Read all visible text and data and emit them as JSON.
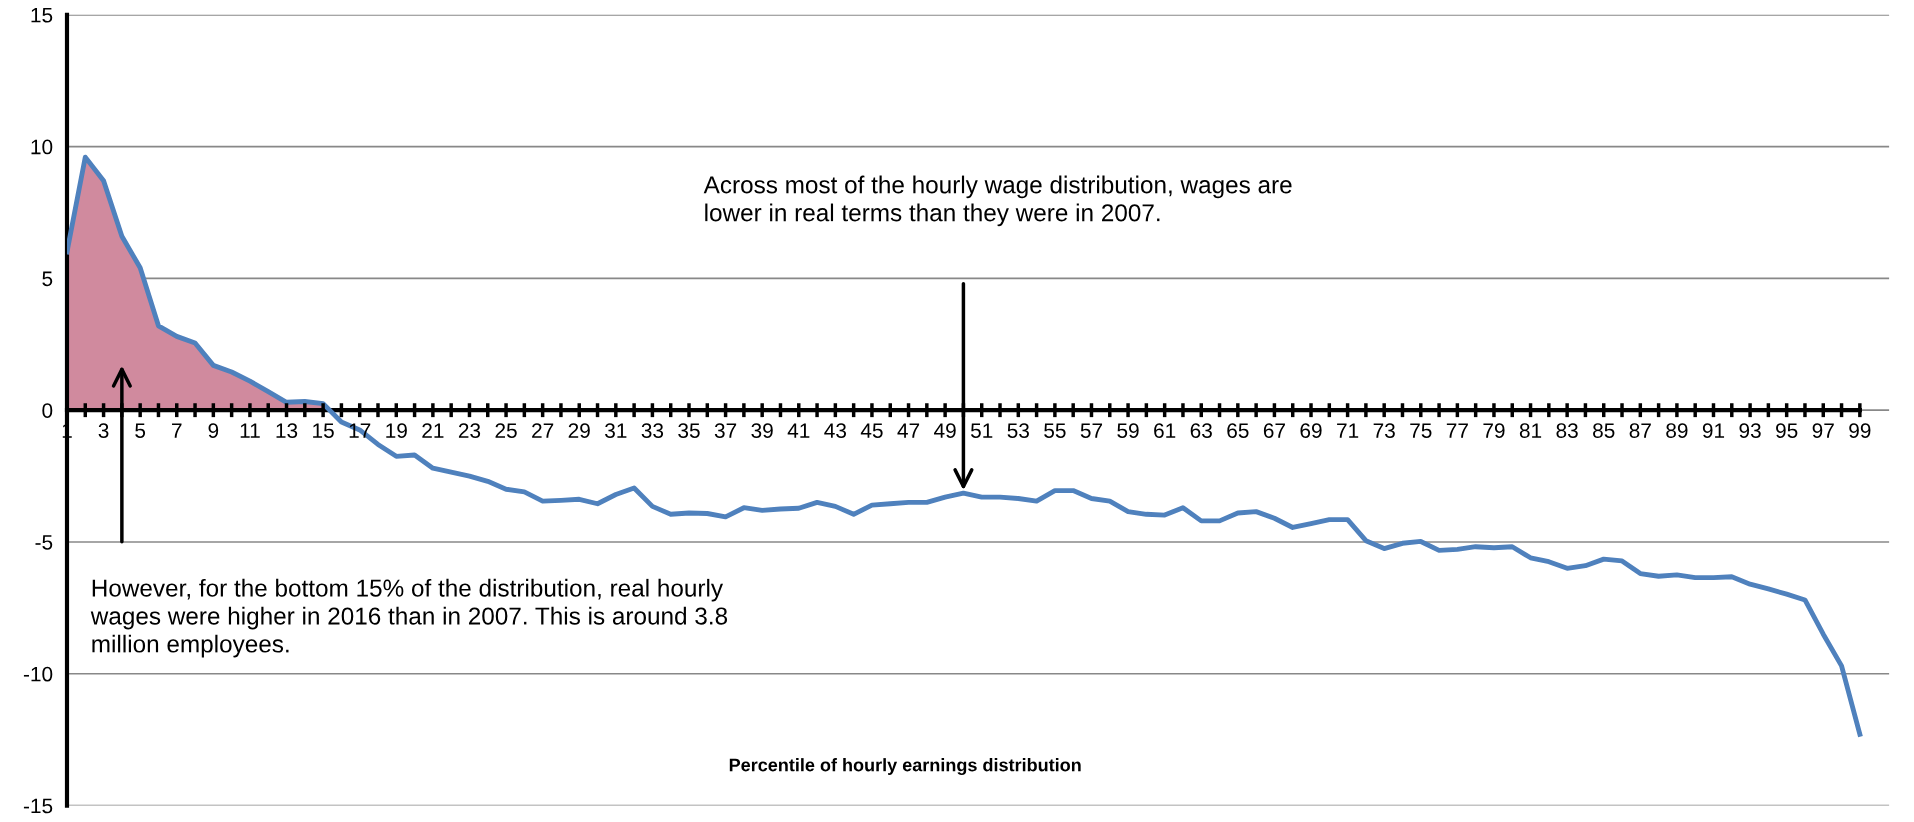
{
  "chart_data": {
    "type": "line",
    "xlabel": "Percentile of hourly earnings distribution",
    "categories": [
      "1",
      null,
      "3",
      null,
      "5",
      null,
      "7",
      null,
      "9",
      null,
      "11",
      null,
      "13",
      null,
      "15",
      null,
      "17",
      null,
      "19",
      null,
      "21",
      null,
      "23",
      null,
      "25",
      null,
      "27",
      null,
      "29",
      null,
      "31",
      null,
      "33",
      null,
      "35",
      null,
      "37",
      null,
      "39",
      null,
      "41",
      null,
      "43",
      null,
      "45",
      null,
      "47",
      null,
      "49",
      null,
      "51",
      null,
      "53",
      null,
      "55",
      null,
      "57",
      null,
      "59",
      null,
      "61",
      null,
      "63",
      null,
      "65",
      null,
      "67",
      null,
      "69",
      null,
      "71",
      null,
      "73",
      null,
      "75",
      null,
      "77",
      null,
      "79",
      null,
      "81",
      null,
      "83",
      null,
      "85",
      null,
      "87",
      null,
      "89",
      null,
      "91",
      null,
      "93",
      null,
      "95",
      null,
      "97",
      null,
      "99"
    ],
    "series": [
      {
        "type": "area",
        "color": "#d08a9e",
        "values": [
          6.0,
          9.6,
          8.7,
          6.6,
          5.4,
          3.2,
          2.8,
          2.55,
          1.7,
          1.45,
          1.1,
          0.7,
          0.3,
          0.33,
          0.25,
          null,
          null,
          null,
          null,
          null,
          null,
          null,
          null,
          null,
          null,
          null,
          null,
          null,
          null,
          null,
          null,
          null,
          null,
          null,
          null,
          null,
          null,
          null,
          null,
          null,
          null,
          null,
          null,
          null,
          null,
          null,
          null,
          null,
          null,
          null,
          null,
          null,
          null,
          null,
          null,
          null,
          null,
          null,
          null,
          null,
          null,
          null,
          null,
          null,
          null,
          null,
          null,
          null,
          null,
          null,
          null,
          null,
          null,
          null,
          null,
          null,
          null,
          null,
          null,
          null,
          null,
          null,
          null,
          null,
          null,
          null,
          null,
          null,
          null,
          null,
          null,
          null,
          null,
          null,
          null,
          null,
          null,
          null,
          null
        ]
      },
      {
        "color": "#4f81bd",
        "values": [
          6.0,
          9.6,
          8.7,
          6.6,
          5.4,
          3.2,
          2.8,
          2.55,
          1.7,
          1.45,
          1.1,
          0.7,
          0.3,
          0.33,
          0.25,
          -0.45,
          -0.75,
          -1.3,
          -1.75,
          -1.7,
          -2.2,
          -2.35,
          -2.5,
          -2.7,
          -3.0,
          -3.1,
          -3.45,
          -3.42,
          -3.38,
          -3.55,
          -3.2,
          -2.95,
          -3.65,
          -3.95,
          -3.9,
          -3.92,
          -4.05,
          -3.7,
          -3.8,
          -3.75,
          -3.72,
          -3.5,
          -3.65,
          -3.95,
          -3.6,
          -3.55,
          -3.5,
          -3.5,
          -3.3,
          -3.15,
          -3.3,
          -3.3,
          -3.35,
          -3.45,
          -3.05,
          -3.05,
          -3.35,
          -3.45,
          -3.85,
          -3.95,
          -3.98,
          -3.7,
          -4.2,
          -4.2,
          -3.9,
          -3.85,
          -4.1,
          -4.45,
          -4.3,
          -4.15,
          -4.15,
          -4.95,
          -5.25,
          -5.05,
          -4.98,
          -5.32,
          -5.28,
          -5.18,
          -5.22,
          -5.18,
          -5.6,
          -5.75,
          -6.0,
          -5.9,
          -5.65,
          -5.72,
          -6.2,
          -6.3,
          -6.25,
          -6.35,
          -6.35,
          -6.32,
          -6.6,
          -6.78,
          -6.98,
          -7.2,
          -8.5,
          -9.7,
          -12.3
        ]
      }
    ],
    "ylim": [
      -15,
      15
    ],
    "yticks": [
      -15,
      -10,
      -5,
      0,
      5,
      10,
      15
    ],
    "grid": "y",
    "marker": "none",
    "line_style": "solid",
    "annotations": [
      "Across most of the hourly wage distribution, wages are lower in real terms than they were in 2007.",
      "However, for the bottom 15% of the distribution, real hourly wages were higher in 2016 than in 2007. This is around 3.8 million employees."
    ]
  }
}
